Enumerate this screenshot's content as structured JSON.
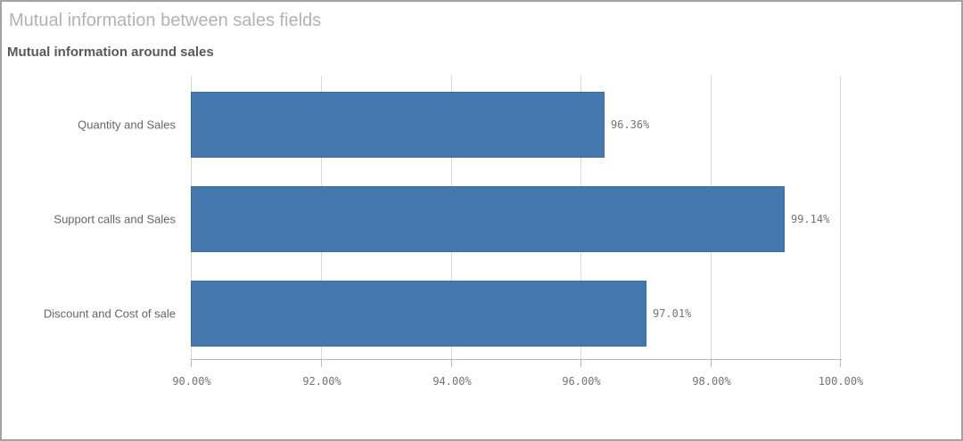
{
  "widget": {
    "title": "Mutual information between sales fields",
    "subtitle": "Mutual information around sales"
  },
  "chart_data": {
    "type": "bar",
    "orientation": "horizontal",
    "title": "Mutual information between sales fields",
    "subtitle": "Mutual information around sales",
    "categories": [
      "Quantity and Sales",
      "Support calls and Sales",
      "Discount and Cost of sale"
    ],
    "values": [
      96.36,
      99.14,
      97.01
    ],
    "data_labels": [
      "96.36%",
      "99.14%",
      "97.01%"
    ],
    "x_axis": {
      "min": 90,
      "max": 100,
      "tick_step": 2,
      "tick_labels": [
        "90.00%",
        "92.00%",
        "94.00%",
        "96.00%",
        "98.00%",
        "100.00%"
      ]
    },
    "ylabel": "",
    "xlabel": "",
    "grid": true,
    "legend_position": "none"
  },
  "colors": {
    "bar_fill": "#4578ae",
    "bar_border": "#3d6b9c",
    "grid_line": "#d9d9d9",
    "axis_line": "#b8b8b8",
    "title_text": "#b2b2b2",
    "subtitle_text": "#595959",
    "category_text": "#656565",
    "value_text": "#737373",
    "widget_border": "#a3a3a3"
  }
}
